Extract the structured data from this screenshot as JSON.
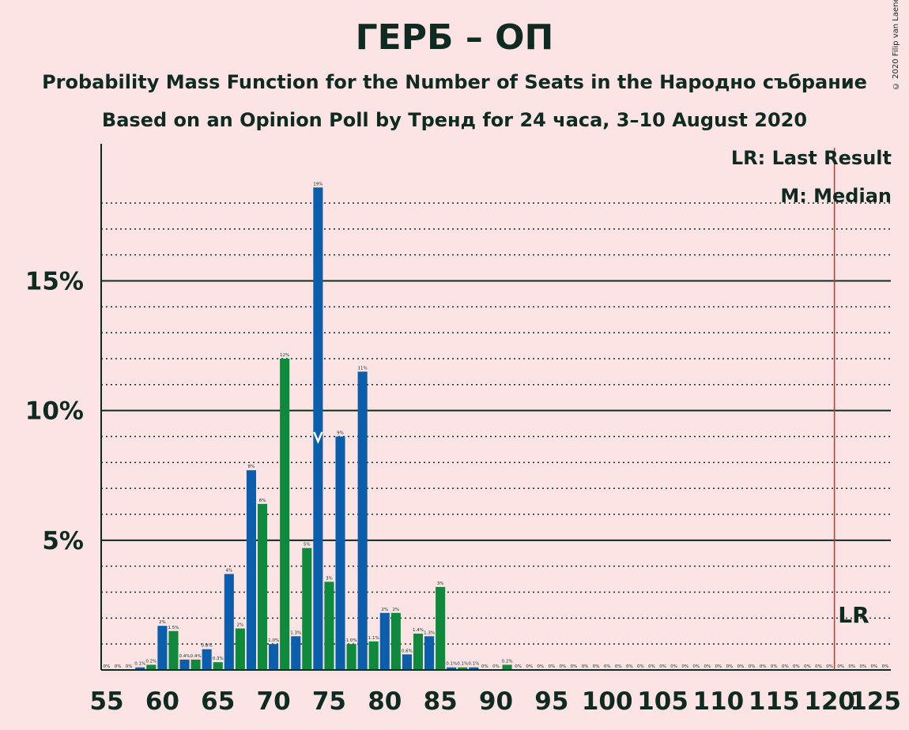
{
  "header": {
    "title": "ГЕРБ – ОП",
    "subtitle": "Probability Mass Function for the Number of Seats in the Народно събрание",
    "subtitle2": "Based on an Opinion Poll by Тренд for 24 часа, 3–10 August 2020",
    "copyright": "© 2020 Filip van Laenen"
  },
  "legend": {
    "last_result": "LR: Last Result",
    "median": "M: Median"
  },
  "colors": {
    "background": "#fde4e4",
    "blue": "#0b5eab",
    "green": "#0f8a3c",
    "lr_line": "#c0392b",
    "text": "#0f2a21"
  },
  "chart_data": {
    "type": "bar",
    "x_ticks": [
      55,
      60,
      65,
      70,
      75,
      80,
      85,
      90,
      95,
      100,
      105,
      110,
      115,
      120,
      125
    ],
    "x_range": [
      55,
      125
    ],
    "y_ticks": [
      5,
      10,
      15
    ],
    "y_tick_labels": [
      "5%",
      "10%",
      "15%"
    ],
    "ylim": [
      0,
      20
    ],
    "minor_gridlines": [
      1,
      2,
      3,
      4,
      6,
      7,
      8,
      9,
      11,
      12,
      13,
      14,
      16,
      17,
      18
    ],
    "seats": [
      55,
      56,
      57,
      58,
      59,
      60,
      61,
      62,
      63,
      64,
      65,
      66,
      67,
      68,
      69,
      70,
      71,
      72,
      73,
      74,
      75,
      76,
      77,
      78,
      79,
      80,
      81,
      82,
      83,
      84,
      85,
      86,
      87,
      88,
      89,
      90,
      91,
      92,
      93,
      94,
      95,
      96,
      97,
      98,
      99,
      100,
      101,
      102,
      103,
      104,
      105,
      106,
      107,
      108,
      109,
      110,
      111,
      112,
      113,
      114,
      115,
      116,
      117,
      118,
      119,
      120,
      121,
      122,
      123,
      124,
      125
    ],
    "values": [
      0,
      0,
      0,
      0.1,
      0.2,
      1.7,
      1.5,
      0.4,
      0.4,
      0.8,
      0.3,
      3.7,
      1.6,
      7.7,
      6.4,
      1.0,
      12.0,
      1.3,
      4.7,
      18.6,
      3.4,
      9.0,
      1.0,
      11.5,
      1.1,
      2.2,
      2.2,
      0.6,
      1.4,
      1.3,
      3.2,
      0.1,
      0.1,
      0.1,
      0,
      0,
      0.2,
      0,
      0,
      0,
      0,
      0,
      0,
      0,
      0,
      0,
      0,
      0,
      0,
      0,
      0,
      0,
      0,
      0,
      0,
      0,
      0,
      0,
      0,
      0,
      0,
      0,
      0,
      0,
      0,
      0,
      0,
      0,
      0,
      0,
      0
    ],
    "labels": [
      "0%",
      "0%",
      "0%",
      "0.1%",
      "0.2%",
      "2%",
      "1.5%",
      "0.4%",
      "0.4%",
      "0.8%",
      "0.3%",
      "4%",
      "2%",
      "8%",
      "6%",
      "1.0%",
      "12%",
      "1.3%",
      "5%",
      "19%",
      "3%",
      "9%",
      "1.0%",
      "11%",
      "1.1%",
      "2%",
      "2%",
      "0.6%",
      "1.4%",
      "1.3%",
      "3%",
      "0.1%",
      "0.1%",
      "0.1%",
      "0%",
      "0%",
      "0.2%",
      "0%",
      "0%",
      "0%",
      "0%",
      "0%",
      "0%",
      "0%",
      "0%",
      "0%",
      "0%",
      "0%",
      "0%",
      "0%",
      "0%",
      "0%",
      "0%",
      "0%",
      "0%",
      "0%",
      "0%",
      "0%",
      "0%",
      "0%",
      "0%",
      "0%",
      "0%",
      "0%",
      "0%",
      "0%",
      "0%",
      "0%",
      "0%",
      "0%",
      "0%"
    ],
    "median": 74,
    "last_result": 121,
    "last_result_label": "LR"
  }
}
